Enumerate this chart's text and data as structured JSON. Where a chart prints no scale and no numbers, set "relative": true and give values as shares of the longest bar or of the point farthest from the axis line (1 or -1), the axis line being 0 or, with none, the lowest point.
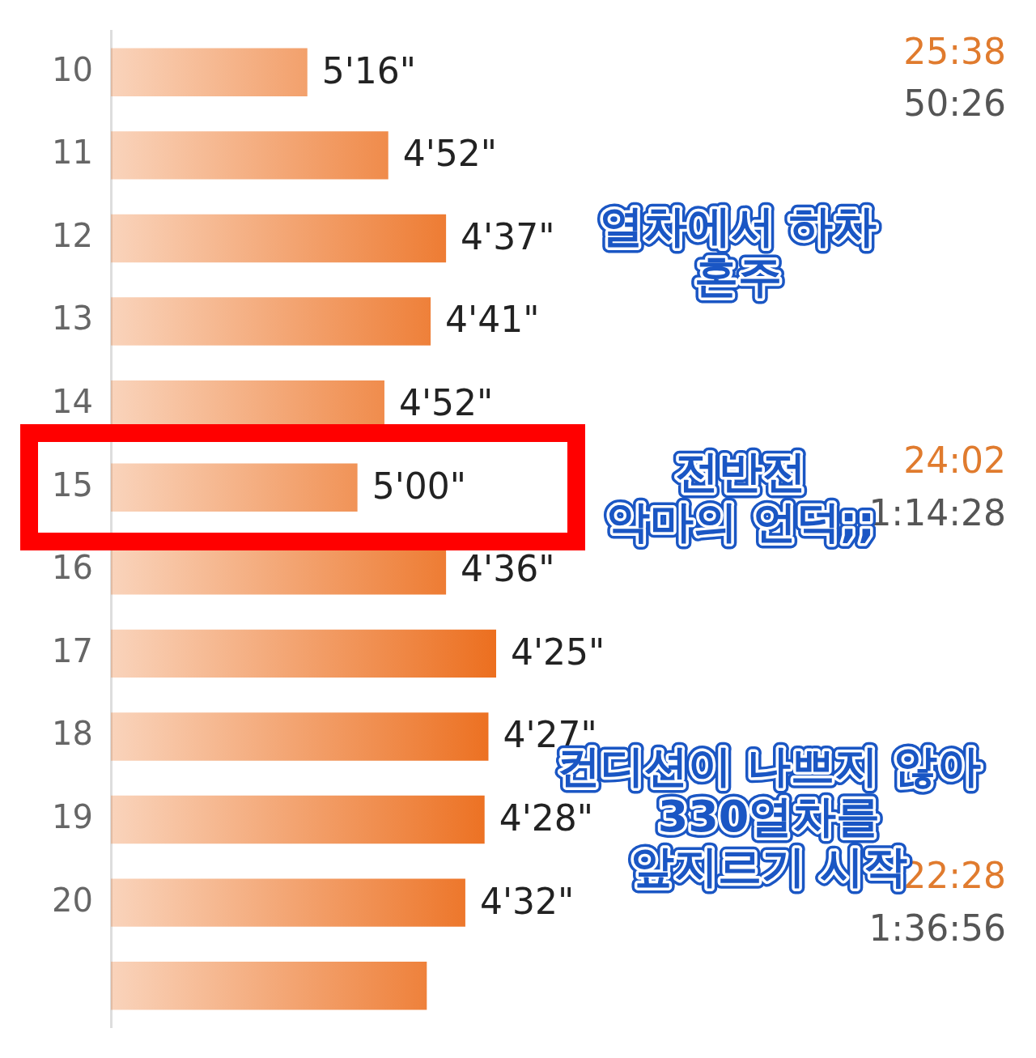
{
  "chart_data": {
    "type": "bar",
    "orientation": "horizontal",
    "relative": true,
    "categories": [
      "10",
      "11",
      "12",
      "13",
      "14",
      "15",
      "16",
      "17",
      "18",
      "19",
      "20",
      null
    ],
    "values": [
      0.51,
      0.72,
      0.87,
      0.83,
      0.71,
      0.64,
      0.87,
      1,
      0.98,
      0.97,
      0.92,
      0.82
    ],
    "color": "#ec6f1f",
    "legend": false,
    "grid": false,
    "annotations": [
      {
        "text": "5'16\"",
        "x": 0.51,
        "y": "10"
      },
      {
        "text": "4'52\"",
        "x": 0.72,
        "y": "11"
      },
      {
        "text": "4'37\"",
        "x": 0.87,
        "y": "12"
      },
      {
        "text": "4'41\"",
        "x": 0.83,
        "y": "13"
      },
      {
        "text": "4'52\"",
        "x": 0.71,
        "y": "14"
      },
      {
        "text": "5'00\"",
        "x": 0.64,
        "y": "15"
      },
      {
        "text": "4'36\"",
        "x": 0.87,
        "y": "16"
      },
      {
        "text": "4'25\"",
        "x": 1,
        "y": "17"
      },
      {
        "text": "4'27\"",
        "x": 0.98,
        "y": "18"
      },
      {
        "text": "4'28\"",
        "x": 0.97,
        "y": "19"
      },
      {
        "text": "4'32\"",
        "x": 0.92,
        "y": "20"
      },
      "25:38",
      "50:26",
      "열차에서 하차\n혼주",
      "24:02",
      "1:14:28",
      "전반전\n악마의 언덕;;",
      "22:28",
      "1:36:56",
      "컨디션이 나쁘지 않아\n330열차를\n앞지르기 시작"
    ]
  }
}
